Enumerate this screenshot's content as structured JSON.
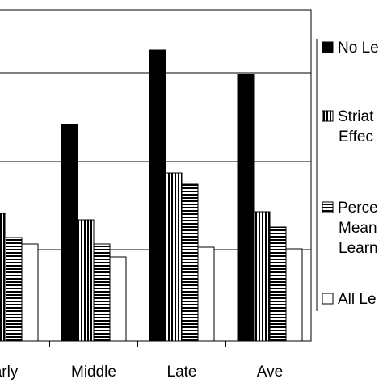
{
  "chart_data": {
    "type": "bar",
    "title": "",
    "xlabel": "",
    "ylabel": "",
    "categories": [
      "Early",
      "Middle",
      "Late",
      "Ave"
    ],
    "category_labels_visible": [
      "arly",
      "Middle",
      "Late",
      "Ave"
    ],
    "series": [
      {
        "name": "No Le",
        "name_lines": [
          "No Le"
        ],
        "values": [
          null,
          268,
          360,
          330
        ],
        "fill": "solid"
      },
      {
        "name": "Striat Effec",
        "name_lines": [
          "Striat",
          "Effec"
        ],
        "values": [
          158,
          150,
          208,
          160
        ],
        "fill": "vertical-stripes"
      },
      {
        "name": "Perce Mean Learn",
        "name_lines": [
          "Perce",
          "Mean",
          "Learn"
        ],
        "values": [
          128,
          120,
          194,
          141
        ],
        "fill": "horizontal-stripes"
      },
      {
        "name": "All Le",
        "name_lines": [
          "All Le"
        ],
        "values": [
          120,
          104,
          116,
          114
        ],
        "fill": "white"
      }
    ],
    "ylim": [
      0,
      410
    ],
    "gridlines": [
      113,
      222,
      332
    ],
    "grid": true,
    "legend_position": "right",
    "colors": {
      "bar_stroke": "#000000",
      "solid": "#000000",
      "background": "#ffffff"
    }
  }
}
